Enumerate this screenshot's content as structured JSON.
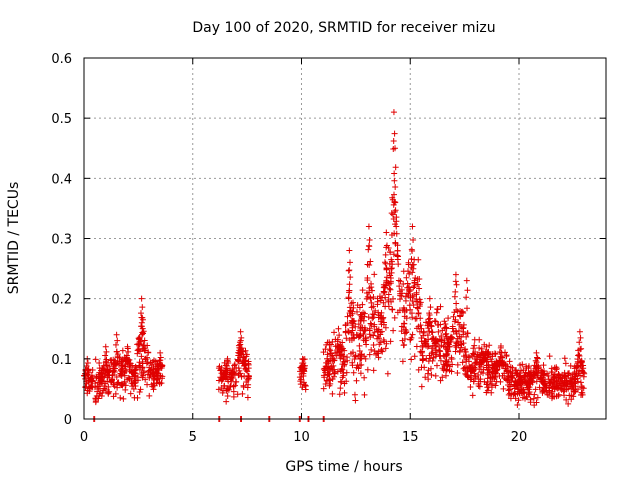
{
  "chart_data": {
    "type": "scatter",
    "title": "Day 100 of 2020, SRMTID for receiver mizu",
    "xlabel": "GPS time / hours",
    "ylabel": "SRMTID / TECUs",
    "xlim": [
      0,
      24
    ],
    "ylim": [
      0,
      0.6
    ],
    "x_ticks": [
      0,
      5,
      10,
      15,
      20
    ],
    "y_ticks": [
      0,
      0.1,
      0.2,
      0.3,
      0.4,
      0.5,
      0.6
    ],
    "x_tick_labels": [
      "0",
      "5",
      "10",
      "15",
      "20"
    ],
    "y_tick_labels": [
      "0",
      "0.1",
      "0.2",
      "0.3",
      "0.4",
      "0.5",
      "0.6"
    ],
    "grid": true,
    "marker": "+",
    "marker_color": "#e00000",
    "series": [
      {
        "name": "SRMTID",
        "segments": [
          {
            "x_start": 0.0,
            "x_end": 0.4,
            "baseline": 0.06,
            "spread": 0.015,
            "peaks": [
              {
                "x": 0.15,
                "y": 0.1
              }
            ]
          },
          {
            "x_start": 0.5,
            "x_end": 1.7,
            "baseline": 0.06,
            "spread": 0.025,
            "peaks": [
              {
                "x": 1.0,
                "y": 0.12
              },
              {
                "x": 1.5,
                "y": 0.14
              }
            ]
          },
          {
            "x_start": 1.7,
            "x_end": 2.4,
            "baseline": 0.07,
            "spread": 0.025,
            "peaks": [
              {
                "x": 2.0,
                "y": 0.12
              }
            ]
          },
          {
            "x_start": 2.4,
            "x_end": 3.0,
            "baseline": 0.09,
            "spread": 0.03,
            "peaks": [
              {
                "x": 2.65,
                "y": 0.2
              }
            ]
          },
          {
            "x_start": 3.0,
            "x_end": 3.6,
            "baseline": 0.07,
            "spread": 0.02,
            "peaks": [
              {
                "x": 3.5,
                "y": 0.11
              }
            ]
          },
          {
            "x_start": 6.2,
            "x_end": 6.9,
            "baseline": 0.065,
            "spread": 0.02,
            "peaks": [
              {
                "x": 6.6,
                "y": 0.1
              }
            ]
          },
          {
            "x_start": 6.9,
            "x_end": 7.6,
            "baseline": 0.08,
            "spread": 0.025,
            "peaks": [
              {
                "x": 7.2,
                "y": 0.145
              }
            ]
          },
          {
            "x_start": 9.9,
            "x_end": 10.2,
            "baseline": 0.07,
            "spread": 0.02,
            "peaks": [
              {
                "x": 10.05,
                "y": 0.1
              }
            ]
          },
          {
            "x_start": 11.0,
            "x_end": 12.0,
            "baseline": 0.09,
            "spread": 0.03,
            "peaks": [
              {
                "x": 11.7,
                "y": 0.15
              }
            ]
          },
          {
            "x_start": 12.0,
            "x_end": 13.0,
            "baseline": 0.12,
            "spread": 0.05,
            "peaks": [
              {
                "x": 12.2,
                "y": 0.28
              },
              {
                "x": 12.8,
                "y": 0.19
              }
            ]
          },
          {
            "x_start": 13.0,
            "x_end": 14.0,
            "baseline": 0.15,
            "spread": 0.06,
            "peaks": [
              {
                "x": 13.1,
                "y": 0.32
              },
              {
                "x": 13.9,
                "y": 0.31
              }
            ]
          },
          {
            "x_start": 14.0,
            "x_end": 14.6,
            "baseline": 0.2,
            "spread": 0.06,
            "peaks": [
              {
                "x": 14.25,
                "y": 0.51
              },
              {
                "x": 14.3,
                "y": 0.45
              }
            ]
          },
          {
            "x_start": 14.6,
            "x_end": 15.5,
            "baseline": 0.18,
            "spread": 0.06,
            "peaks": [
              {
                "x": 15.1,
                "y": 0.32
              }
            ]
          },
          {
            "x_start": 15.5,
            "x_end": 16.5,
            "baseline": 0.12,
            "spread": 0.04,
            "peaks": [
              {
                "x": 15.9,
                "y": 0.2
              }
            ]
          },
          {
            "x_start": 16.5,
            "x_end": 17.5,
            "baseline": 0.12,
            "spread": 0.04,
            "peaks": [
              {
                "x": 17.1,
                "y": 0.24
              },
              {
                "x": 17.6,
                "y": 0.23
              }
            ]
          },
          {
            "x_start": 17.5,
            "x_end": 18.5,
            "baseline": 0.09,
            "spread": 0.03,
            "peaks": [
              {
                "x": 18.5,
                "y": 0.12
              }
            ]
          },
          {
            "x_start": 18.5,
            "x_end": 19.5,
            "baseline": 0.08,
            "spread": 0.025,
            "peaks": [
              {
                "x": 19.2,
                "y": 0.11
              }
            ]
          },
          {
            "x_start": 19.5,
            "x_end": 21.5,
            "baseline": 0.06,
            "spread": 0.02,
            "peaks": [
              {
                "x": 20.8,
                "y": 0.11
              }
            ]
          },
          {
            "x_start": 21.5,
            "x_end": 23.0,
            "baseline": 0.06,
            "spread": 0.02,
            "peaks": [
              {
                "x": 22.8,
                "y": 0.145
              }
            ]
          }
        ],
        "zero_points": [
          0.45,
          6.2,
          7.2,
          8.5,
          9.9,
          10.3,
          11.0
        ]
      }
    ]
  }
}
